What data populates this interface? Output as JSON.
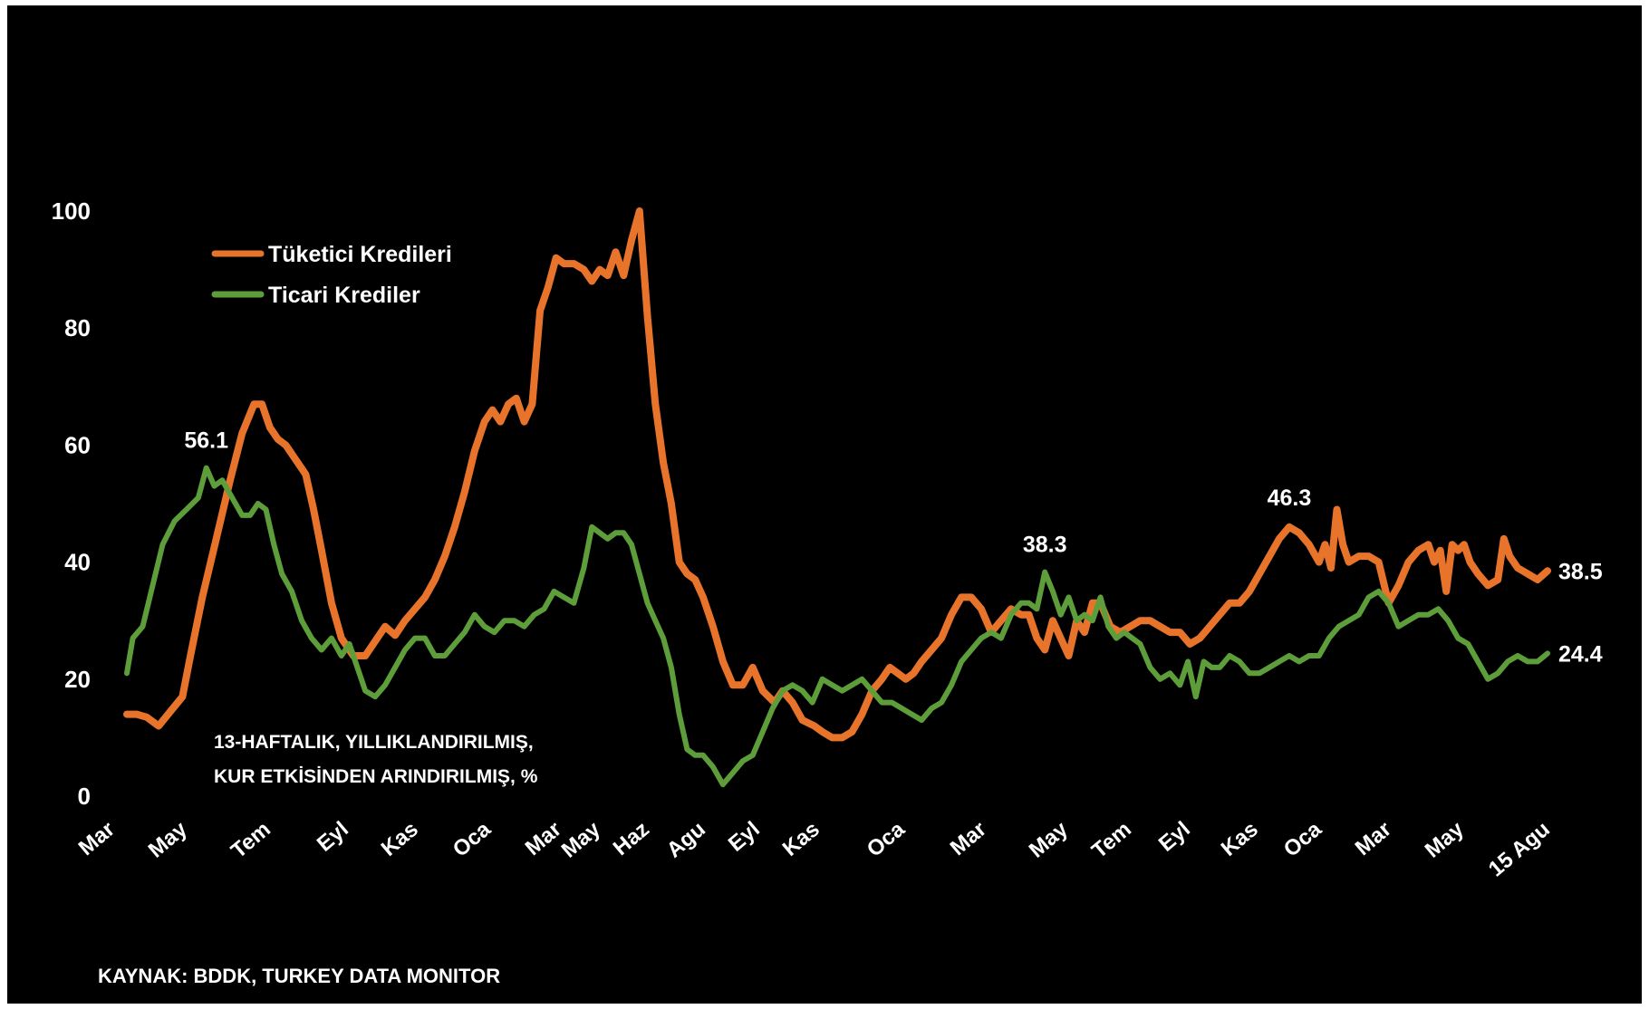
{
  "colors": {
    "background": "#000000",
    "consumer": "#e8742c",
    "commercial": "#5e9e3a",
    "text": "#ffffff"
  },
  "note": {
    "line1": "13-HAFTALIK, YILLIKLANDIRILMIŞ,",
    "line2": "KUR ETKİSİNDEN ARINDIRILMIŞ, %"
  },
  "source": "KAYNAK: BDDK, TURKEY DATA MONITOR",
  "chart_data": {
    "type": "line",
    "ylim": [
      0,
      100
    ],
    "yticks": [
      "0",
      "20",
      "40",
      "60",
      "80",
      "100"
    ],
    "xticks": [
      "Mar",
      "May",
      "Tem",
      "Eyl",
      "Kas",
      "Oca",
      "Mar",
      "May",
      "Haz",
      "Agu",
      "Eyl",
      "Kas",
      "Oca",
      "Mar",
      "May",
      "Tem",
      "Eyl",
      "Kas",
      "Oca",
      "Mar",
      "May",
      "15 Agu"
    ],
    "legend": {
      "position": "top-left"
    },
    "grid": false,
    "series": [
      {
        "name": "Tüketici Kredileri",
        "color": "#e8742c",
        "points": [
          [
            0,
            14
          ],
          [
            0.5,
            14
          ],
          [
            1,
            13.5
          ],
          [
            1.6,
            12
          ],
          [
            2.2,
            14.5
          ],
          [
            2.8,
            17
          ],
          [
            3.2,
            24
          ],
          [
            3.8,
            34
          ],
          [
            4.5,
            44
          ],
          [
            5.2,
            54
          ],
          [
            5.8,
            62
          ],
          [
            6.4,
            67
          ],
          [
            6.8,
            67
          ],
          [
            7.2,
            63
          ],
          [
            7.6,
            61
          ],
          [
            8,
            60
          ],
          [
            8.6,
            57
          ],
          [
            9,
            55
          ],
          [
            9.4,
            49
          ],
          [
            9.8,
            42
          ],
          [
            10.3,
            33
          ],
          [
            10.8,
            27
          ],
          [
            11.4,
            24
          ],
          [
            12,
            24
          ],
          [
            12.6,
            27
          ],
          [
            13,
            29
          ],
          [
            13.5,
            27.5
          ],
          [
            14,
            30
          ],
          [
            14.5,
            32
          ],
          [
            15,
            34
          ],
          [
            15.5,
            37
          ],
          [
            16,
            41
          ],
          [
            16.5,
            46
          ],
          [
            17,
            52
          ],
          [
            17.5,
            59
          ],
          [
            18,
            64
          ],
          [
            18.4,
            66
          ],
          [
            18.8,
            64
          ],
          [
            19.2,
            67
          ],
          [
            19.6,
            68
          ],
          [
            20,
            64
          ],
          [
            20.4,
            67
          ],
          [
            20.8,
            83
          ],
          [
            21.2,
            87
          ],
          [
            21.6,
            92
          ],
          [
            22,
            91
          ],
          [
            22.5,
            91
          ],
          [
            23,
            90
          ],
          [
            23.4,
            88
          ],
          [
            23.8,
            90
          ],
          [
            24.2,
            89
          ],
          [
            24.6,
            93
          ],
          [
            25,
            89
          ],
          [
            25.4,
            95
          ],
          [
            25.8,
            100
          ],
          [
            26.2,
            82
          ],
          [
            26.6,
            67
          ],
          [
            27,
            57
          ],
          [
            27.4,
            50
          ],
          [
            27.8,
            40
          ],
          [
            28.2,
            38
          ],
          [
            28.6,
            37
          ],
          [
            29,
            34
          ],
          [
            29.5,
            29
          ],
          [
            30,
            23
          ],
          [
            30.5,
            19
          ],
          [
            31,
            19
          ],
          [
            31.5,
            22
          ],
          [
            32,
            18
          ],
          [
            32.6,
            16
          ],
          [
            33,
            18
          ],
          [
            33.5,
            16
          ],
          [
            34,
            13
          ],
          [
            34.6,
            12
          ],
          [
            35,
            11
          ],
          [
            35.5,
            10
          ],
          [
            36,
            10
          ],
          [
            36.5,
            11
          ],
          [
            37,
            14
          ],
          [
            37.5,
            18
          ],
          [
            38,
            20
          ],
          [
            38.4,
            22
          ],
          [
            38.8,
            21
          ],
          [
            39.2,
            20
          ],
          [
            39.6,
            21
          ],
          [
            40,
            23
          ],
          [
            40.5,
            25
          ],
          [
            41,
            27
          ],
          [
            41.5,
            31
          ],
          [
            42,
            34
          ],
          [
            42.5,
            34
          ],
          [
            43,
            32
          ],
          [
            43.5,
            28
          ],
          [
            44,
            30
          ],
          [
            44.5,
            32
          ],
          [
            45,
            31
          ],
          [
            45.4,
            31
          ],
          [
            45.8,
            27
          ],
          [
            46.2,
            25
          ],
          [
            46.6,
            30
          ],
          [
            47,
            27
          ],
          [
            47.4,
            24
          ],
          [
            47.8,
            30
          ],
          [
            48.2,
            28
          ],
          [
            48.6,
            33
          ],
          [
            49,
            33
          ],
          [
            49.5,
            29
          ],
          [
            50,
            28
          ],
          [
            50.5,
            29
          ],
          [
            51,
            30
          ],
          [
            51.5,
            30
          ],
          [
            52,
            29
          ],
          [
            52.5,
            28
          ],
          [
            53,
            28
          ],
          [
            53.5,
            26
          ],
          [
            54,
            27
          ],
          [
            54.5,
            29
          ],
          [
            55,
            31
          ],
          [
            55.5,
            33
          ],
          [
            56,
            33
          ],
          [
            56.5,
            35
          ],
          [
            57,
            38
          ],
          [
            57.5,
            41
          ],
          [
            58,
            44
          ],
          [
            58.5,
            46
          ],
          [
            59,
            45
          ],
          [
            59.5,
            43
          ],
          [
            60,
            40
          ],
          [
            60.3,
            43
          ],
          [
            60.6,
            39
          ],
          [
            60.9,
            49
          ],
          [
            61.2,
            43
          ],
          [
            61.5,
            40
          ],
          [
            62,
            41
          ],
          [
            62.5,
            41
          ],
          [
            63,
            40
          ],
          [
            63.5,
            33
          ],
          [
            64,
            36
          ],
          [
            64.5,
            40
          ],
          [
            65,
            42
          ],
          [
            65.5,
            43
          ],
          [
            65.8,
            40
          ],
          [
            66.1,
            42
          ],
          [
            66.4,
            35
          ],
          [
            66.7,
            43
          ],
          [
            67,
            42
          ],
          [
            67.3,
            43
          ],
          [
            67.6,
            40
          ],
          [
            68,
            38
          ],
          [
            68.5,
            36
          ],
          [
            69,
            37
          ],
          [
            69.3,
            44
          ],
          [
            69.6,
            41
          ],
          [
            70,
            39
          ],
          [
            70.5,
            38
          ],
          [
            71,
            37
          ],
          [
            71.5,
            38.5
          ]
        ]
      },
      {
        "name": "Ticari Krediler",
        "color": "#5e9e3a",
        "points": [
          [
            0,
            21
          ],
          [
            0.3,
            27
          ],
          [
            0.8,
            29
          ],
          [
            1.3,
            36
          ],
          [
            1.8,
            43
          ],
          [
            2.4,
            47
          ],
          [
            3,
            49
          ],
          [
            3.6,
            51
          ],
          [
            4,
            56.1
          ],
          [
            4.4,
            53
          ],
          [
            4.8,
            54
          ],
          [
            5.3,
            51
          ],
          [
            5.8,
            48
          ],
          [
            6.2,
            48
          ],
          [
            6.6,
            50
          ],
          [
            7,
            49
          ],
          [
            7.4,
            43
          ],
          [
            7.8,
            38
          ],
          [
            8.3,
            35
          ],
          [
            8.8,
            30
          ],
          [
            9.3,
            27
          ],
          [
            9.8,
            25
          ],
          [
            10.3,
            27
          ],
          [
            10.8,
            24
          ],
          [
            11.2,
            26
          ],
          [
            11.6,
            22
          ],
          [
            12,
            18
          ],
          [
            12.5,
            17
          ],
          [
            13,
            19
          ],
          [
            13.5,
            22
          ],
          [
            14,
            25
          ],
          [
            14.5,
            27
          ],
          [
            15,
            27
          ],
          [
            15.5,
            24
          ],
          [
            16,
            24
          ],
          [
            16.5,
            26
          ],
          [
            17,
            28
          ],
          [
            17.5,
            31
          ],
          [
            18,
            29
          ],
          [
            18.5,
            28
          ],
          [
            19,
            30
          ],
          [
            19.5,
            30
          ],
          [
            20,
            29
          ],
          [
            20.5,
            31
          ],
          [
            21,
            32
          ],
          [
            21.5,
            35
          ],
          [
            22,
            34
          ],
          [
            22.5,
            33
          ],
          [
            23,
            39
          ],
          [
            23.4,
            46
          ],
          [
            23.8,
            45
          ],
          [
            24.2,
            44
          ],
          [
            24.6,
            45
          ],
          [
            25,
            45
          ],
          [
            25.4,
            43
          ],
          [
            25.8,
            38
          ],
          [
            26.2,
            33
          ],
          [
            26.6,
            30
          ],
          [
            27,
            27
          ],
          [
            27.4,
            22
          ],
          [
            27.8,
            14
          ],
          [
            28.2,
            8
          ],
          [
            28.6,
            7
          ],
          [
            29,
            7
          ],
          [
            29.5,
            5
          ],
          [
            30,
            2
          ],
          [
            30.5,
            4
          ],
          [
            31,
            6
          ],
          [
            31.5,
            7
          ],
          [
            32,
            11
          ],
          [
            32.5,
            15
          ],
          [
            33,
            18
          ],
          [
            33.5,
            19
          ],
          [
            34,
            18
          ],
          [
            34.5,
            16
          ],
          [
            35,
            20
          ],
          [
            35.5,
            19
          ],
          [
            36,
            18
          ],
          [
            36.5,
            19
          ],
          [
            37,
            20
          ],
          [
            37.5,
            18
          ],
          [
            38,
            16
          ],
          [
            38.5,
            16
          ],
          [
            39,
            15
          ],
          [
            39.5,
            14
          ],
          [
            40,
            13
          ],
          [
            40.5,
            15
          ],
          [
            41,
            16
          ],
          [
            41.5,
            19
          ],
          [
            42,
            23
          ],
          [
            42.5,
            25
          ],
          [
            43,
            27
          ],
          [
            43.5,
            28
          ],
          [
            44,
            27
          ],
          [
            44.5,
            31
          ],
          [
            45,
            33
          ],
          [
            45.4,
            33
          ],
          [
            45.8,
            32
          ],
          [
            46.2,
            38.3
          ],
          [
            46.6,
            35
          ],
          [
            47,
            31
          ],
          [
            47.4,
            34
          ],
          [
            47.8,
            30
          ],
          [
            48.2,
            31
          ],
          [
            48.6,
            30
          ],
          [
            49,
            34
          ],
          [
            49.4,
            29
          ],
          [
            49.8,
            27
          ],
          [
            50.2,
            28
          ],
          [
            50.6,
            27
          ],
          [
            51,
            26
          ],
          [
            51.5,
            22
          ],
          [
            52,
            20
          ],
          [
            52.5,
            21
          ],
          [
            53,
            19
          ],
          [
            53.4,
            23
          ],
          [
            53.8,
            17
          ],
          [
            54.2,
            23
          ],
          [
            54.6,
            22
          ],
          [
            55,
            22
          ],
          [
            55.5,
            24
          ],
          [
            56,
            23
          ],
          [
            56.5,
            21
          ],
          [
            57,
            21
          ],
          [
            57.5,
            22
          ],
          [
            58,
            23
          ],
          [
            58.5,
            24
          ],
          [
            59,
            23
          ],
          [
            59.5,
            24
          ],
          [
            60,
            24
          ],
          [
            60.5,
            27
          ],
          [
            61,
            29
          ],
          [
            61.5,
            30
          ],
          [
            62,
            31
          ],
          [
            62.5,
            34
          ],
          [
            63,
            35
          ],
          [
            63.5,
            33
          ],
          [
            64,
            29
          ],
          [
            64.5,
            30
          ],
          [
            65,
            31
          ],
          [
            65.5,
            31
          ],
          [
            66,
            32
          ],
          [
            66.5,
            30
          ],
          [
            67,
            27
          ],
          [
            67.5,
            26
          ],
          [
            68,
            23
          ],
          [
            68.5,
            20
          ],
          [
            69,
            21
          ],
          [
            69.5,
            23
          ],
          [
            70,
            24
          ],
          [
            70.5,
            23
          ],
          [
            71,
            23
          ],
          [
            71.5,
            24.4
          ]
        ]
      }
    ],
    "annotations": [
      {
        "text": "56.1",
        "x": 4,
        "y": 56.1
      },
      {
        "text": "38.3",
        "x": 46.2,
        "y": 38.3
      },
      {
        "text": "46.3",
        "x": 58.5,
        "y": 46.3
      },
      {
        "text": "38.5",
        "x": 71.5,
        "y": 38.5,
        "side": "right"
      },
      {
        "text": "24.4",
        "x": 71.5,
        "y": 24.4,
        "side": "right"
      }
    ]
  }
}
